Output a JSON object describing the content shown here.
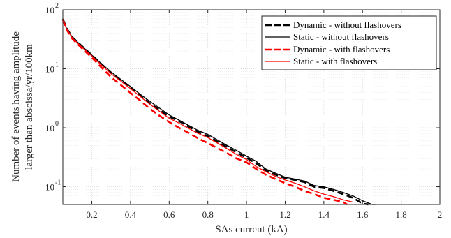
{
  "chart_data": {
    "type": "line",
    "xlabel": "SAs current (kA)",
    "ylabel_line1": "Number of events having amplitude",
    "ylabel_line2": "larger than abscissa/yr/100km",
    "xlim": [
      0.05,
      2.0
    ],
    "ylim": [
      0.05,
      100
    ],
    "yscale": "log",
    "grid": true,
    "minor_grid": true,
    "legend_position": "top-right",
    "x_ticks": [
      0.2,
      0.4,
      0.6,
      0.8,
      1.0,
      1.2,
      1.4,
      1.6,
      1.8,
      2.0
    ],
    "x_tick_labels": [
      "0.2",
      "0.4",
      "0.6",
      "0.8",
      "1",
      "1.2",
      "1.4",
      "1.6",
      "1.8",
      "2"
    ],
    "y_ticks": [
      0.1,
      1,
      10,
      100
    ],
    "y_tick_labels": [
      "10",
      "10",
      "10",
      "10"
    ],
    "y_tick_exponents": [
      "-1",
      "0",
      "1",
      "2"
    ],
    "series": [
      {
        "name": "Dynamic - without flashovers",
        "color": "#000000",
        "dash": "dashed",
        "thick": true,
        "x": [
          0.05,
          0.07,
          0.1,
          0.15,
          0.2,
          0.25,
          0.3,
          0.35,
          0.4,
          0.45,
          0.5,
          0.55,
          0.6,
          0.65,
          0.7,
          0.75,
          0.8,
          0.85,
          0.9,
          0.95,
          1.0,
          1.05,
          1.1,
          1.15,
          1.2,
          1.25,
          1.3,
          1.35,
          1.4,
          1.45,
          1.5,
          1.55,
          1.6,
          1.63
        ],
        "y": [
          70,
          48,
          34,
          24,
          17,
          12,
          8.5,
          6.3,
          4.8,
          3.5,
          2.6,
          2.0,
          1.55,
          1.3,
          1.05,
          0.85,
          0.72,
          0.58,
          0.47,
          0.38,
          0.31,
          0.25,
          0.19,
          0.16,
          0.14,
          0.13,
          0.12,
          0.1,
          0.095,
          0.085,
          0.075,
          0.065,
          0.052,
          0.05
        ]
      },
      {
        "name": "Static - without flashovers",
        "color": "#000000",
        "dash": "solid",
        "thick": false,
        "x": [
          0.05,
          0.07,
          0.1,
          0.15,
          0.2,
          0.25,
          0.3,
          0.35,
          0.4,
          0.45,
          0.5,
          0.55,
          0.6,
          0.65,
          0.7,
          0.75,
          0.8,
          0.85,
          0.9,
          0.95,
          1.0,
          1.05,
          1.1,
          1.15,
          1.2,
          1.25,
          1.3,
          1.35,
          1.4,
          1.45,
          1.5,
          1.55,
          1.6,
          1.65,
          1.67
        ],
        "y": [
          70,
          48,
          34,
          24,
          17,
          12.2,
          8.8,
          6.6,
          5.0,
          3.7,
          2.8,
          2.15,
          1.65,
          1.35,
          1.1,
          0.9,
          0.77,
          0.62,
          0.5,
          0.41,
          0.33,
          0.27,
          0.2,
          0.17,
          0.145,
          0.135,
          0.125,
          0.105,
          0.1,
          0.09,
          0.08,
          0.07,
          0.058,
          0.05,
          0.05
        ]
      },
      {
        "name": "Dynamic - with flashovers",
        "color": "#ff0000",
        "dash": "dashed",
        "thick": true,
        "x": [
          0.05,
          0.07,
          0.1,
          0.15,
          0.2,
          0.25,
          0.3,
          0.35,
          0.4,
          0.45,
          0.5,
          0.55,
          0.6,
          0.65,
          0.7,
          0.75,
          0.8,
          0.85,
          0.9,
          0.95,
          1.0,
          1.05,
          1.1,
          1.15,
          1.2,
          1.25,
          1.3,
          1.35,
          1.4,
          1.45,
          1.5,
          1.52
        ],
        "y": [
          68,
          46,
          32,
          22,
          15.5,
          10.5,
          7.2,
          5.3,
          3.9,
          2.9,
          2.1,
          1.6,
          1.25,
          1.0,
          0.82,
          0.66,
          0.55,
          0.45,
          0.37,
          0.3,
          0.26,
          0.2,
          0.16,
          0.135,
          0.115,
          0.1,
          0.085,
          0.075,
          0.065,
          0.06,
          0.055,
          0.05
        ]
      },
      {
        "name": "Static - with flashovers",
        "color": "#ff0000",
        "dash": "solid",
        "thick": false,
        "x": [
          0.05,
          0.07,
          0.1,
          0.15,
          0.2,
          0.25,
          0.3,
          0.35,
          0.4,
          0.45,
          0.5,
          0.55,
          0.6,
          0.65,
          0.7,
          0.75,
          0.8,
          0.85,
          0.9,
          0.95,
          1.0,
          1.05,
          1.1,
          1.15,
          1.2,
          1.25,
          1.3,
          1.35,
          1.4,
          1.45,
          1.5,
          1.55
        ],
        "y": [
          70,
          47,
          33,
          23,
          16.5,
          11.5,
          8.2,
          6.2,
          4.6,
          3.4,
          2.5,
          1.9,
          1.45,
          1.2,
          0.98,
          0.8,
          0.68,
          0.55,
          0.44,
          0.35,
          0.29,
          0.22,
          0.18,
          0.15,
          0.13,
          0.115,
          0.1,
          0.085,
          0.075,
          0.068,
          0.06,
          0.055
        ]
      }
    ]
  }
}
